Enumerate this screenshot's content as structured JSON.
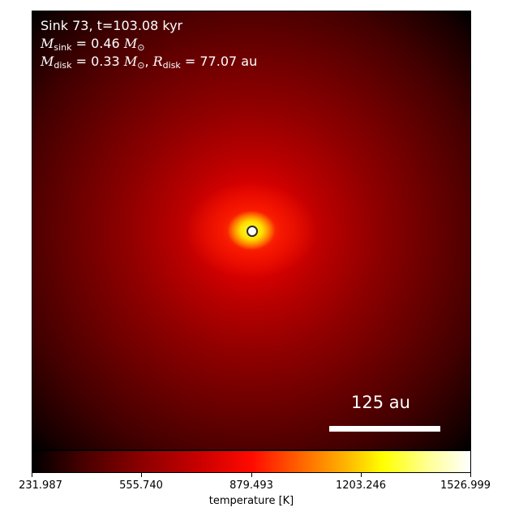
{
  "annotation": {
    "sink_label": "Sink 73, t=103.08 kyr",
    "m_sink_symbol": "M",
    "m_sink_sub": "sink",
    "m_sink_value": " = 0.46 ",
    "m_unit_symbol": "M",
    "m_unit_sub": "⊙",
    "m_disk_symbol": "M",
    "m_disk_sub": "disk",
    "m_disk_value": " = 0.33 ",
    "m_disk_unit_symbol": "M",
    "m_disk_unit_sub": "⊙",
    "separator": ", ",
    "r_disk_symbol": "R",
    "r_disk_sub": "disk",
    "r_disk_value": " = 77.07 au"
  },
  "scale_bar": {
    "label": "125 au"
  },
  "colorbar": {
    "label": "temperature [K]",
    "ticks": [
      "231.987",
      "555.740",
      "879.493",
      "1203.246",
      "1526.999"
    ]
  }
}
